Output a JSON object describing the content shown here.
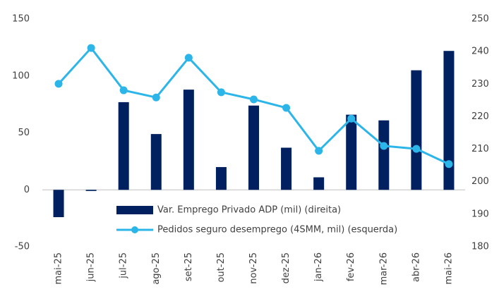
{
  "chart_data": {
    "type": "bar_line",
    "categories": [
      "mai-25",
      "jun-25",
      "jul-25",
      "ago-25",
      "set-25",
      "out-25",
      "nov-25",
      "dez-25",
      "jan-26",
      "fev-26",
      "mar-26",
      "abr-26",
      "mai-26"
    ],
    "series": [
      {
        "name": "Var. Emprego Privado ADP (mil) (direita)",
        "type": "bar",
        "color": "#002060",
        "values": [
          -24,
          -1,
          77,
          49,
          88,
          20,
          74,
          37,
          11,
          66,
          61,
          105,
          122
        ]
      },
      {
        "name": "Pedidos seguro desemprego (4SMM, mil) (esquerda)",
        "type": "line",
        "axis": "y2",
        "color": "#2cb5e8",
        "values": [
          230.1,
          241.1,
          228.1,
          225.9,
          238.1,
          227.5,
          225.3,
          222.7,
          209.5,
          219.4,
          211,
          210.1,
          205.4
        ]
      }
    ],
    "ylim": [
      -50,
      150
    ],
    "yticks": [
      -50,
      0,
      50,
      100,
      150
    ],
    "y2lim": [
      180,
      250
    ],
    "y2ticks": [
      180,
      190,
      200,
      210,
      220,
      230,
      240,
      250
    ]
  }
}
